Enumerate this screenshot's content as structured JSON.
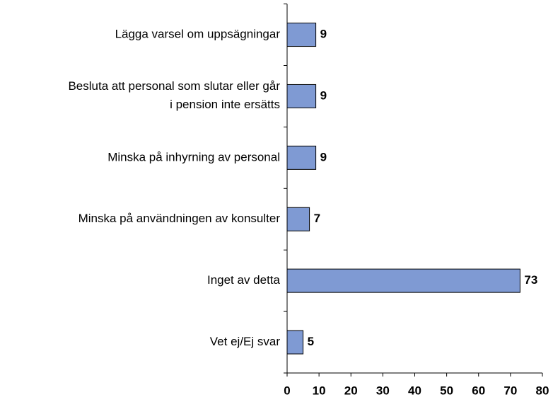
{
  "chart_data": {
    "type": "bar",
    "orientation": "horizontal",
    "categories": [
      "Lägga varsel om uppsägningar",
      "Besluta att personal som slutar eller går\ni pension inte ersätts",
      "Minska på inhyrning av personal",
      "Minska på användningen av konsulter",
      "Inget av detta",
      "Vet ej/Ej svar"
    ],
    "values": [
      9,
      9,
      9,
      7,
      73,
      5
    ],
    "color": "#7f9ad3",
    "xlim": [
      0,
      80
    ],
    "xticks": [
      0,
      10,
      20,
      30,
      40,
      50,
      60,
      70,
      80
    ]
  }
}
